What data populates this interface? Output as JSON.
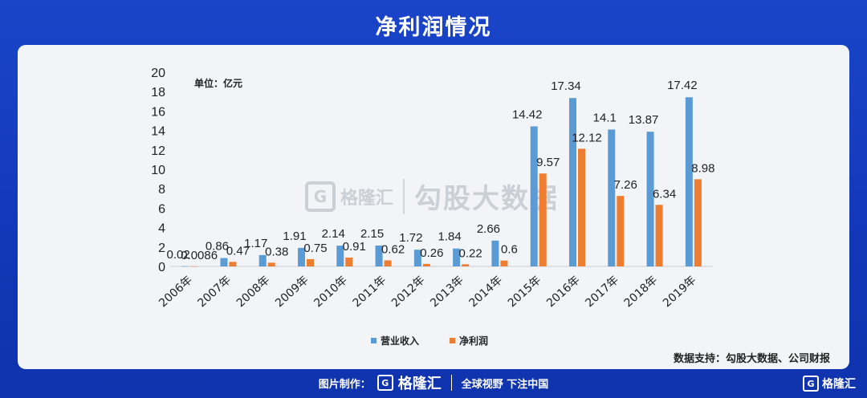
{
  "page": {
    "title": "净利润情况",
    "unit": "单位：亿元",
    "source": "数据支持：勾股大数据、公司财报",
    "watermark_brand": "格隆汇",
    "watermark_text": "勾股大数据",
    "footer_prefix": "图片制作：",
    "footer_brand": "格隆汇",
    "footer_slogan": "全球视野 下注中国",
    "corner_brand": "格隆汇"
  },
  "colors": {
    "revenue": "#5b9bd5",
    "profit": "#ed7d31",
    "background": "#1a45c8"
  },
  "chart_data": {
    "type": "bar",
    "title": "",
    "xlabel": "",
    "ylabel": "",
    "ylim": [
      0,
      20
    ],
    "yticks": [
      0,
      2,
      4,
      6,
      8,
      10,
      12,
      14,
      16,
      18,
      20
    ],
    "grid": false,
    "legend_position": "bottom",
    "categories": [
      "2006年",
      "2007年",
      "2008年",
      "2009年",
      "2010年",
      "2011年",
      "2012年",
      "2013年",
      "2014年",
      "2015年",
      "2016年",
      "2017年",
      "2018年",
      "2019年"
    ],
    "series": [
      {
        "name": "营业收入",
        "values": [
          0.02,
          0.86,
          1.17,
          1.91,
          2.14,
          2.15,
          1.72,
          1.84,
          2.66,
          14.42,
          17.34,
          14.1,
          13.87,
          17.42
        ],
        "labels": [
          "0.02",
          "0.86",
          "1.17",
          "1.91",
          "2.14",
          "2.15",
          "1.72",
          "1.84",
          "2.66",
          "14.42",
          "17.34",
          "14.1",
          "13.87",
          "17.42"
        ]
      },
      {
        "name": "净利润",
        "values": [
          0.0086,
          0.47,
          0.38,
          0.75,
          0.91,
          0.62,
          0.26,
          0.22,
          0.6,
          9.57,
          12.12,
          7.26,
          6.34,
          8.98
        ],
        "labels": [
          "0.0086",
          "0.47",
          "0.38",
          "0.75",
          "0.91",
          "0.62",
          "0.26",
          "0.22",
          "0.6",
          "9.57",
          "12.12",
          "7.26",
          "6.34",
          "8.98"
        ]
      }
    ]
  }
}
